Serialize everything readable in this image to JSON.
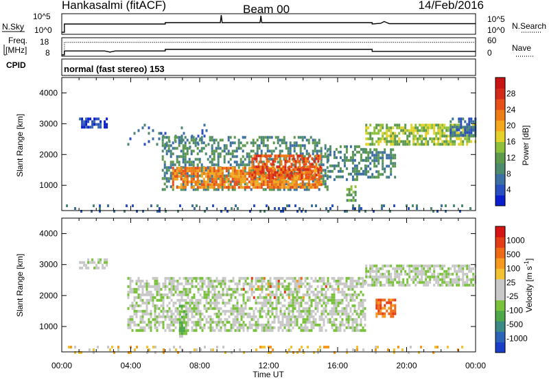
{
  "header": {
    "site": "Hankasalmi (fitACF)",
    "beam": "Beam 00",
    "date": "14/Feb/2016"
  },
  "chart_data": [
    {
      "type": "line",
      "panel": "noise",
      "left_label": "N.Sky",
      "right_label": "N.Search",
      "left_ticks": [
        "10^5",
        "10^0"
      ],
      "right_ticks": [
        "10^5",
        "10^0"
      ],
      "scale": "log",
      "series": [
        {
          "name": "N.Sky",
          "style": "solid",
          "x_hours": [
            0,
            0.15,
            0.15,
            6,
            6,
            9.2,
            9.25,
            9.3,
            11.5,
            11.55,
            11.6,
            18,
            18,
            18.5,
            18.7,
            19,
            24
          ],
          "log_y": [
            0,
            0,
            2.3,
            2.3,
            2.7,
            2.7,
            4.8,
            2.7,
            2.7,
            4.6,
            2.7,
            2.7,
            2.3,
            2.5,
            3.0,
            2.4,
            2.4
          ]
        }
      ]
    },
    {
      "type": "line",
      "panel": "frequency",
      "left_label": "Freq.\n[MHz]",
      "right_label": "Nave",
      "left_ticks": [
        "18",
        "8"
      ],
      "right_ticks": [
        "60",
        "0"
      ],
      "series": [
        {
          "name": "Freq.",
          "style": "solid",
          "x_hours": [
            0,
            0.15,
            0.15,
            2.5,
            2.8,
            3.1,
            6,
            6,
            18,
            18,
            24
          ],
          "y": [
            8,
            8,
            10.5,
            10.5,
            9.8,
            10.5,
            10.5,
            11.5,
            11.5,
            10.2,
            10.2
          ]
        },
        {
          "name": "Nave",
          "style": "dotted",
          "x_hours": [
            0,
            0.15,
            0.15,
            24
          ],
          "y_nave": [
            0,
            0,
            48,
            48
          ]
        }
      ]
    },
    {
      "type": "table",
      "panel": "cpid",
      "label": "CPID",
      "text": "normal (fast stereo) 153"
    },
    {
      "type": "heatmap",
      "panel": "power",
      "ylabel": "Slant Range [km]",
      "ylim": [
        180,
        4500
      ],
      "y_ticks": [
        1000,
        2000,
        3000,
        4000
      ],
      "xlim": [
        0,
        24
      ],
      "colorbar": {
        "label": "Power [dB]",
        "ticks": [
          "4",
          "8",
          "12",
          "16",
          "20",
          "24",
          "28"
        ],
        "colors": [
          "#0a1ed0",
          "#2a4fc0",
          "#3e6fa3",
          "#4d8a6e",
          "#5e9a4e",
          "#8ec03c",
          "#e2d22a",
          "#f3a81e",
          "#ef7d16",
          "#e8501a",
          "#d42a1a",
          "#c81414"
        ]
      },
      "regions": [
        {
          "from_hour": 0,
          "to_hour": 24,
          "from_km": 180,
          "to_km": 380,
          "level": 2,
          "density": 0.18
        },
        {
          "from_hour": 1.0,
          "to_hour": 2.6,
          "from_km": 2900,
          "to_km": 3200,
          "level": 1,
          "density": 0.55
        },
        {
          "from_hour": 3.8,
          "to_hour": 8.5,
          "from_km": 2200,
          "to_km": 3000,
          "level": 2,
          "density": 0.1
        },
        {
          "from_hour": 5.8,
          "to_hour": 15.4,
          "from_km": 850,
          "to_km": 2600,
          "level": 3,
          "density": 0.45
        },
        {
          "from_hour": 6.4,
          "to_hour": 15.0,
          "from_km": 950,
          "to_km": 1600,
          "level": 8,
          "density": 0.75
        },
        {
          "from_hour": 11.0,
          "to_hour": 15.0,
          "from_km": 1200,
          "to_km": 2000,
          "level": 9,
          "density": 0.6
        },
        {
          "from_hour": 15.4,
          "to_hour": 17.6,
          "from_km": 1200,
          "to_km": 2300,
          "level": 3,
          "density": 0.4
        },
        {
          "from_hour": 16.5,
          "to_hour": 17.0,
          "from_km": 500,
          "to_km": 1000,
          "level": 4,
          "density": 0.6
        },
        {
          "from_hour": 17.6,
          "to_hour": 19.3,
          "from_km": 1300,
          "to_km": 2200,
          "level": 3,
          "density": 0.5
        },
        {
          "from_hour": 17.6,
          "to_hour": 24,
          "from_km": 2300,
          "to_km": 3000,
          "level": 5,
          "density": 0.7
        },
        {
          "from_hour": 22.5,
          "to_hour": 24,
          "from_km": 2600,
          "to_km": 3200,
          "level": 2,
          "density": 0.55
        }
      ]
    },
    {
      "type": "heatmap",
      "panel": "velocity",
      "ylabel": "Slant Range [km]",
      "ylim": [
        180,
        4500
      ],
      "y_ticks": [
        1000,
        2000,
        3000,
        4000
      ],
      "xlim": [
        0,
        24
      ],
      "x_ticks": [
        "00:00",
        "04:00",
        "08:00",
        "12:00",
        "16:00",
        "20:00",
        "00:00"
      ],
      "xlabel": "Time UT",
      "colorbar": {
        "label": "Velocity [m s^-1]",
        "ticks": [
          "1000",
          "500",
          "100",
          "25",
          "-25",
          "-100",
          "-500",
          "-1000"
        ],
        "colors": [
          "#1a3ec8",
          "#2b63b8",
          "#3b8a86",
          "#4ea84a",
          "#7ac23c",
          "#c8c8c8",
          "#c8c8c8",
          "#f2c233",
          "#f59a1e",
          "#ee6a14",
          "#e43c16",
          "#d61414"
        ]
      },
      "regions": [
        {
          "from_hour": 0,
          "to_hour": 24,
          "from_km": 180,
          "to_km": 380,
          "level": 7,
          "density": 0.16
        },
        {
          "from_hour": 1.0,
          "to_hour": 2.6,
          "from_km": 2900,
          "to_km": 3200,
          "level": 5,
          "density": 0.55
        },
        {
          "from_hour": 3.8,
          "to_hour": 17.6,
          "from_km": 850,
          "to_km": 2600,
          "level": 5,
          "density": 0.6
        },
        {
          "from_hour": 17.6,
          "to_hour": 24,
          "from_km": 2300,
          "to_km": 3000,
          "level": 5,
          "density": 0.7
        },
        {
          "from_hour": 6.8,
          "to_hour": 7.2,
          "from_km": 700,
          "to_km": 1700,
          "level": 4,
          "density": 0.7
        },
        {
          "from_hour": 18.2,
          "to_hour": 19.3,
          "from_km": 1300,
          "to_km": 1900,
          "level": 9,
          "density": 0.7
        },
        {
          "from_hour": 10.5,
          "to_hour": 16.5,
          "from_km": 1900,
          "to_km": 2600,
          "level": 9,
          "density": 0.05
        }
      ]
    }
  ]
}
